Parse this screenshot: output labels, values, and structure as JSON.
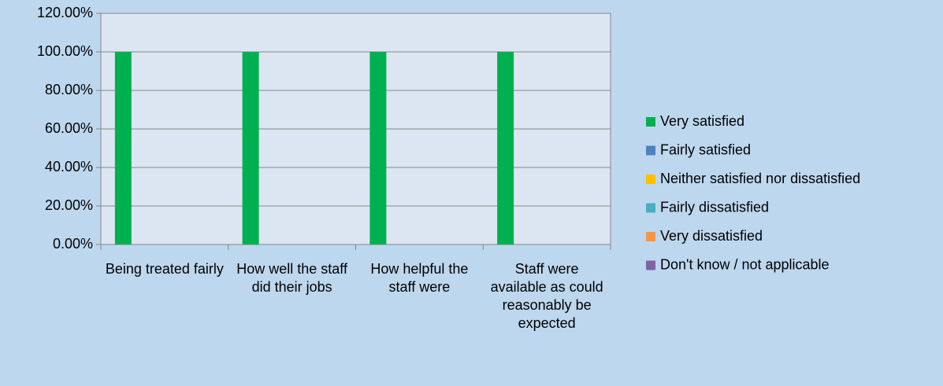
{
  "chart_data": {
    "type": "bar",
    "categories": [
      "Being treated fairly",
      "How well the staff did their jobs",
      "How helpful the staff were",
      "Staff were available as could reasonably be expected"
    ],
    "series": [
      {
        "name": "Very satisfied",
        "color": "#00b050",
        "values": [
          100,
          100,
          100,
          100
        ]
      },
      {
        "name": "Fairly satisfied",
        "color": "#4f81bd",
        "values": [
          0,
          0,
          0,
          0
        ]
      },
      {
        "name": "Neither satisfied nor dissatisfied",
        "color": "#ffc000",
        "values": [
          0,
          0,
          0,
          0
        ]
      },
      {
        "name": "Fairly dissatisfied",
        "color": "#4bacc6",
        "values": [
          0,
          0,
          0,
          0
        ]
      },
      {
        "name": "Very dissatisfied",
        "color": "#f79646",
        "values": [
          0,
          0,
          0,
          0
        ]
      },
      {
        "name": "Don't know / not applicable",
        "color": "#8064a2",
        "values": [
          0,
          0,
          0,
          0
        ]
      }
    ],
    "ylim": [
      0,
      120
    ],
    "yticks": [
      {
        "value": 0,
        "label": "0.00%"
      },
      {
        "value": 20,
        "label": "20.00%"
      },
      {
        "value": 40,
        "label": "40.00%"
      },
      {
        "value": 60,
        "label": "60.00%"
      },
      {
        "value": 80,
        "label": "80.00%"
      },
      {
        "value": 100,
        "label": "100.00%"
      },
      {
        "value": 120,
        "label": "120.00%"
      }
    ],
    "grid": true,
    "legend": "right"
  }
}
